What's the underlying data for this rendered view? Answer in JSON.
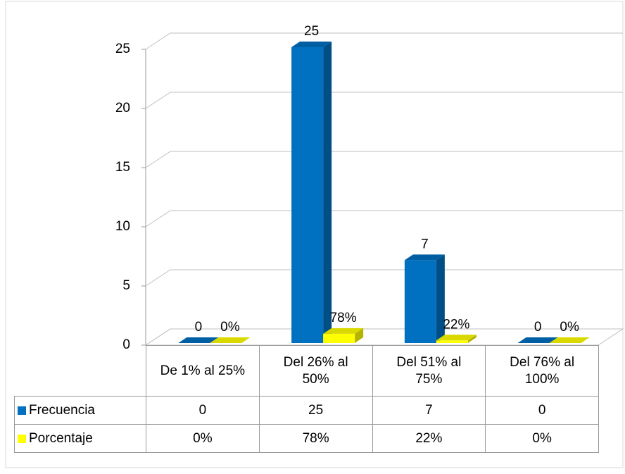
{
  "chart_data": {
    "type": "bar3d",
    "categories": [
      "De 1% al 25%",
      "Del 26% al 50%",
      "Del 51% al 75%",
      "Del 76% al 100%"
    ],
    "series": [
      {
        "name": "Frecuencia",
        "color": "#0070c0",
        "values": [
          0,
          25,
          7,
          0
        ]
      },
      {
        "name": "Porcentaje",
        "color": "#ffff00",
        "values": [
          0,
          0.78,
          0.22,
          0
        ],
        "value_labels": [
          "0%",
          "78%",
          "22%",
          "0%"
        ]
      }
    ],
    "ylim": [
      0,
      25
    ],
    "yticks": [
      0,
      5,
      10,
      15,
      20,
      25
    ],
    "grid": true,
    "data_table": true
  }
}
